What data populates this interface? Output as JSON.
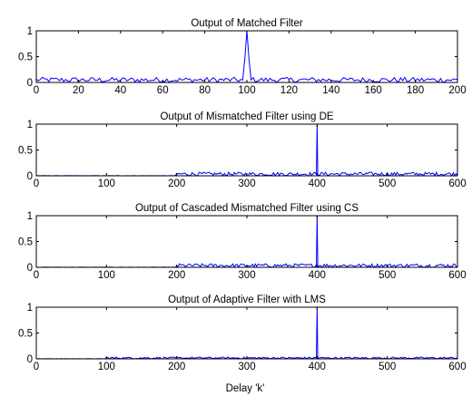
{
  "figure": {
    "xlabel": "Delay 'k'"
  },
  "chart_data": [
    {
      "type": "line",
      "title": "Output of Matched Filter",
      "xlim": [
        0,
        200
      ],
      "ylim": [
        0,
        1
      ],
      "xticks": [
        0,
        20,
        40,
        60,
        80,
        100,
        120,
        140,
        160,
        180,
        200
      ],
      "yticks": [
        0,
        0.5,
        1
      ],
      "ytick_labels": [
        "0",
        "0.5",
        "1"
      ],
      "grid": false,
      "color": "#0000ff",
      "noise": {
        "start": 0,
        "end": 200,
        "step": 1,
        "max": 0.1
      },
      "series": [
        {
          "x": [
            98,
            99,
            100,
            101,
            102
          ],
          "y": [
            0.05,
            0.45,
            1.0,
            0.45,
            0.05
          ]
        }
      ]
    },
    {
      "type": "line",
      "title": "Output of Mismatched Filter using DE",
      "xlim": [
        0,
        600
      ],
      "ylim": [
        0,
        1
      ],
      "xticks": [
        0,
        100,
        200,
        300,
        400,
        500,
        600
      ],
      "yticks": [
        0,
        0.5,
        1
      ],
      "ytick_labels": [
        "0",
        "0.5",
        "1"
      ],
      "grid": false,
      "color": "#0000ff",
      "noise": {
        "start": 200,
        "end": 600,
        "step": 2,
        "max": 0.07
      },
      "series": [
        {
          "x": [
            399,
            400,
            401
          ],
          "y": [
            0.02,
            1.0,
            0.02
          ]
        }
      ]
    },
    {
      "type": "line",
      "title": "Output of Cascaded Mismatched Filter using CS",
      "xlim": [
        0,
        600
      ],
      "ylim": [
        0,
        1
      ],
      "xticks": [
        0,
        100,
        200,
        300,
        400,
        500,
        600
      ],
      "yticks": [
        0,
        0.5,
        1
      ],
      "ytick_labels": [
        "0",
        "0.5",
        "1"
      ],
      "grid": false,
      "color": "#0000ff",
      "noise": {
        "start": 200,
        "end": 600,
        "step": 2,
        "max": 0.07
      },
      "series": [
        {
          "x": [
            399,
            400,
            401
          ],
          "y": [
            0.02,
            1.0,
            0.02
          ]
        }
      ]
    },
    {
      "type": "line",
      "title": "Output of Adaptive Filter with LMS",
      "xlim": [
        0,
        600
      ],
      "ylim": [
        0,
        1
      ],
      "xticks": [
        0,
        100,
        200,
        300,
        400,
        500,
        600
      ],
      "yticks": [
        0,
        0.5,
        1
      ],
      "ytick_labels": [
        "0",
        "0.5",
        "1"
      ],
      "grid": false,
      "color": "#0000ff",
      "noise": {
        "start": 100,
        "end": 600,
        "step": 2,
        "max": 0.035
      },
      "series": [
        {
          "x": [
            399,
            400,
            401
          ],
          "y": [
            0.02,
            1.0,
            0.02
          ]
        }
      ]
    }
  ]
}
